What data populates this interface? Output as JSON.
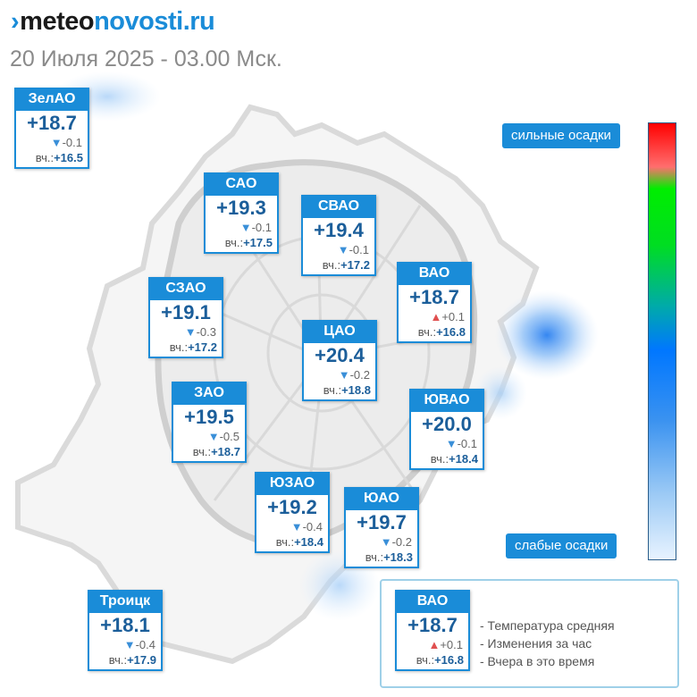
{
  "header": {
    "logo_prefix": "›",
    "logo_part1": "meteo",
    "logo_part2": "novosti.ru",
    "subtitle": "20 Июля 2025 - 03.00 Мск."
  },
  "colors": {
    "accent": "#1a8cd8",
    "temp": "#1b5e9a",
    "up": "#e05050",
    "down": "#3a8fd8"
  },
  "districts": [
    {
      "name": "ЗелАО",
      "temp": "+18.7",
      "trend": "down",
      "change": "-0.1",
      "yesterday_label": "вч.:",
      "yesterday": "+16.5"
    },
    {
      "name": "САО",
      "temp": "+19.3",
      "trend": "down",
      "change": "-0.1",
      "yesterday_label": "вч.:",
      "yesterday": "+17.5"
    },
    {
      "name": "СВАО",
      "temp": "+19.4",
      "trend": "down",
      "change": "-0.1",
      "yesterday_label": "вч.:",
      "yesterday": "+17.2"
    },
    {
      "name": "ВАО",
      "temp": "+18.7",
      "trend": "up",
      "change": "+0.1",
      "yesterday_label": "вч.:",
      "yesterday": "+16.8"
    },
    {
      "name": "СЗАО",
      "temp": "+19.1",
      "trend": "down",
      "change": "-0.3",
      "yesterday_label": "вч.:",
      "yesterday": "+17.2"
    },
    {
      "name": "ЦАО",
      "temp": "+20.4",
      "trend": "down",
      "change": "-0.2",
      "yesterday_label": "вч.:",
      "yesterday": "+18.8"
    },
    {
      "name": "ЗАО",
      "temp": "+19.5",
      "trend": "down",
      "change": "-0.5",
      "yesterday_label": "вч.:",
      "yesterday": "+18.7"
    },
    {
      "name": "ЮВАО",
      "temp": "+20.0",
      "trend": "down",
      "change": "-0.1",
      "yesterday_label": "вч.:",
      "yesterday": "+18.4"
    },
    {
      "name": "ЮЗАО",
      "temp": "+19.2",
      "trend": "down",
      "change": "-0.4",
      "yesterday_label": "вч.:",
      "yesterday": "+18.4"
    },
    {
      "name": "ЮАО",
      "temp": "+19.7",
      "trend": "down",
      "change": "-0.2",
      "yesterday_label": "вч.:",
      "yesterday": "+18.3"
    },
    {
      "name": "Троицк",
      "temp": "+18.1",
      "trend": "down",
      "change": "-0.4",
      "yesterday_label": "вч.:",
      "yesterday": "+17.9"
    }
  ],
  "precip_scale": {
    "top_label": "сильные осадки",
    "bottom_label": "слабые осадки"
  },
  "legend": {
    "sample": {
      "name": "ВАО",
      "temp": "+18.7",
      "trend": "up",
      "change": "+0.1",
      "yesterday_label": "вч.:",
      "yesterday": "+16.8"
    },
    "lines": [
      "- Температура средняя",
      "- Изменения за час",
      "- Вчера в это время"
    ]
  }
}
